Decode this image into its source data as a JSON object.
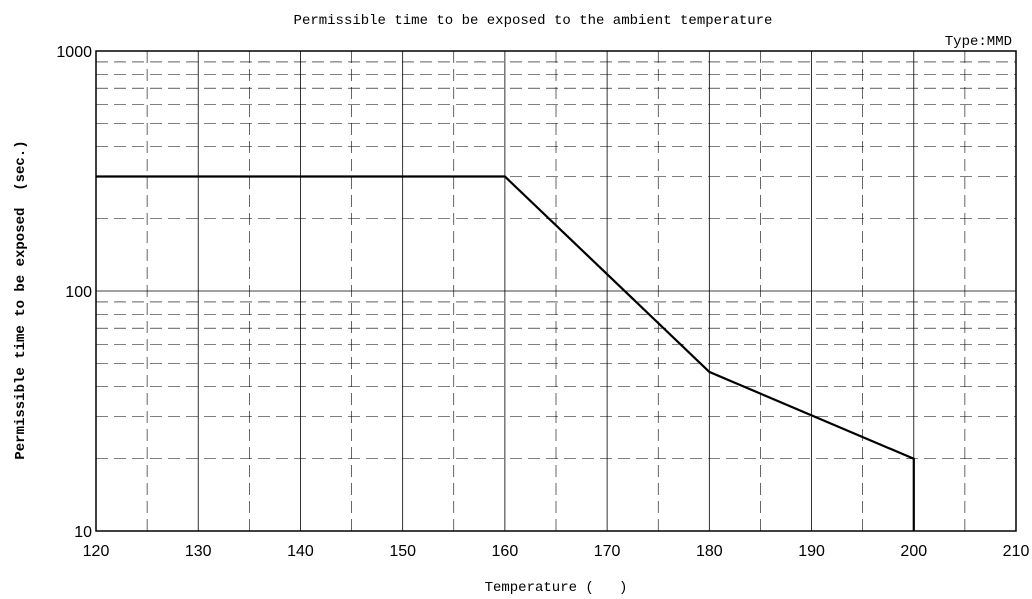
{
  "chart_data": {
    "type": "line",
    "title": "Permissible time to be exposed to the ambient temperature",
    "subtitle": "Type:MMD",
    "xlabel": "Temperature (   )",
    "ylabel": "Permissible time to be exposed  (sec.)",
    "xlim": [
      120,
      210
    ],
    "ylim": [
      10,
      1000
    ],
    "yscale": "log",
    "x_ticks": [
      120,
      130,
      140,
      150,
      160,
      170,
      180,
      190,
      200,
      210
    ],
    "y_ticks": [
      10,
      100,
      1000
    ],
    "grid": true,
    "series": [
      {
        "x": [
          120,
          160,
          180,
          200,
          200
        ],
        "y": [
          300,
          300,
          46,
          20,
          10
        ]
      }
    ],
    "colors": {
      "line": "#000000",
      "grid": "#000000",
      "background": "#ffffff"
    }
  }
}
